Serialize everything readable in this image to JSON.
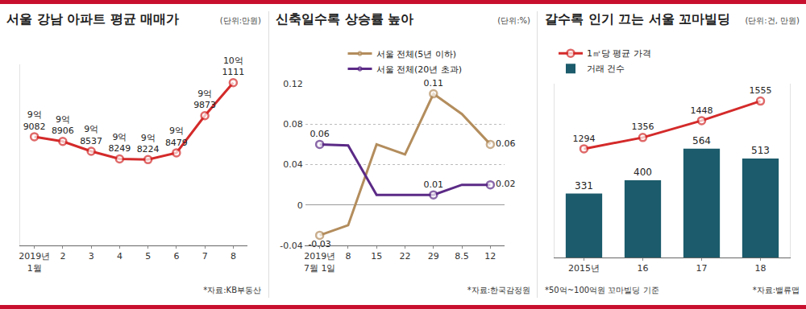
{
  "chart_data": [
    {
      "type": "line",
      "title": "서울 강남 아파트 평균 매매가",
      "subtitle": "(단위:만원)",
      "categories": [
        "2019년\n1월",
        "2",
        "3",
        "4",
        "5",
        "6",
        "7",
        "8"
      ],
      "values": [
        99082,
        98906,
        98537,
        98249,
        98224,
        98479,
        99873,
        101111
      ],
      "value_labels": [
        "9억\n9082",
        "9억\n8906",
        "9억\n8537",
        "9억\n8249",
        "9억\n8224",
        "9억\n8479",
        "9억\n9873",
        "10억\n1111"
      ],
      "color": "#d42a2a",
      "marker": "circle",
      "data_labels": true,
      "ylim": [
        95000,
        101800
      ],
      "tick_labels": "x",
      "grid": false,
      "annotations": [
        "*자료:KB부동산"
      ]
    },
    {
      "type": "line",
      "title": "신축일수록 상승률 높아",
      "subtitle": "(단위:%)",
      "categories": [
        "2019년\n7월 1일",
        "8",
        "15",
        "22",
        "29",
        "8.5",
        "12"
      ],
      "series": [
        {
          "name": "서울 전체(5년 이하)",
          "color": "#b38d5d",
          "values": [
            -0.03,
            -0.02,
            0.06,
            0.05,
            0.11,
            0.09,
            0.06
          ],
          "value_labels": [
            "-0.03",
            null,
            null,
            null,
            "0.11",
            null,
            "0.06"
          ]
        },
        {
          "name": "서울 전체(20년 초과)",
          "color": "#5b2a86",
          "values": [
            0.06,
            0.059,
            0.01,
            0.01,
            0.01,
            0.02,
            0.02
          ],
          "value_labels": [
            "0.06",
            null,
            null,
            null,
            "0.01",
            null,
            "0.02"
          ]
        }
      ],
      "ylim": [
        -0.04,
        0.12
      ],
      "yticks": [
        -0.04,
        0,
        0.04,
        0.08,
        0.12
      ],
      "grid": true,
      "legend": "top",
      "marker": "circle",
      "data_labels": true,
      "annotations": [
        "*자료:한국감정원"
      ]
    },
    {
      "type": "bar",
      "title": "갈수록 인기 끄는 서울 꼬마빌딩",
      "subtitle": "(단위:건, 만원)",
      "categories": [
        "2015년",
        "16",
        "17",
        "18"
      ],
      "series": [
        {
          "name": "1㎡당 평균 가격",
          "type": "line",
          "axis": "y2",
          "color": "#d42a2a",
          "values": [
            1294,
            1356,
            1448,
            1555
          ]
        },
        {
          "name": "거래 건수",
          "type": "bar",
          "color": "#1b5b6b",
          "values": [
            331,
            400,
            564,
            513
          ]
        }
      ],
      "ylim": [
        0,
        900
      ],
      "y2lim": [
        700,
        1650
      ],
      "tick_labels": "x",
      "grid": false,
      "legend": "top left",
      "marker": "circle",
      "data_labels": true,
      "annotations": [
        "*50억~100억원 꼬마빌딩 기준",
        "*자료:밸류맵"
      ]
    }
  ]
}
